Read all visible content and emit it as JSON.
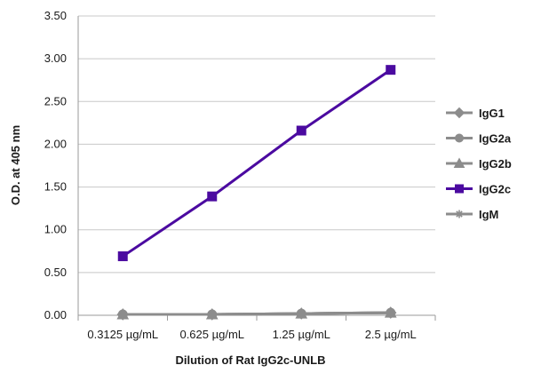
{
  "chart_data": {
    "type": "line",
    "categories": [
      "0.3125 µg/mL",
      "0.625 µg/mL",
      "1.25 µg/mL",
      "2.5 µg/mL"
    ],
    "xlabel": "Dilution of Rat IgG2c-UNLB",
    "ylabel": "O.D. at 405 nm",
    "ylim": [
      0,
      3.5
    ],
    "yticks": [
      "0.00",
      "0.50",
      "1.00",
      "1.50",
      "2.00",
      "2.50",
      "3.00",
      "3.50"
    ],
    "grid": true,
    "legend_position": "right",
    "series": [
      {
        "name": "IgG1",
        "values": [
          0.01,
          0.01,
          0.02,
          0.03
        ],
        "color": "#8c8c8c",
        "marker": "diamond"
      },
      {
        "name": "IgG2a",
        "values": [
          0.01,
          0.01,
          0.02,
          0.03
        ],
        "color": "#8c8c8c",
        "marker": "circle"
      },
      {
        "name": "IgG2b",
        "values": [
          0.01,
          0.01,
          0.02,
          0.03
        ],
        "color": "#8c8c8c",
        "marker": "triangle"
      },
      {
        "name": "IgG2c",
        "values": [
          0.69,
          1.39,
          2.16,
          2.87
        ],
        "color": "#4b0aa0",
        "marker": "square"
      },
      {
        "name": "IgM",
        "values": [
          0.01,
          0.01,
          0.02,
          0.03
        ],
        "color": "#8c8c8c",
        "marker": "star"
      }
    ]
  }
}
